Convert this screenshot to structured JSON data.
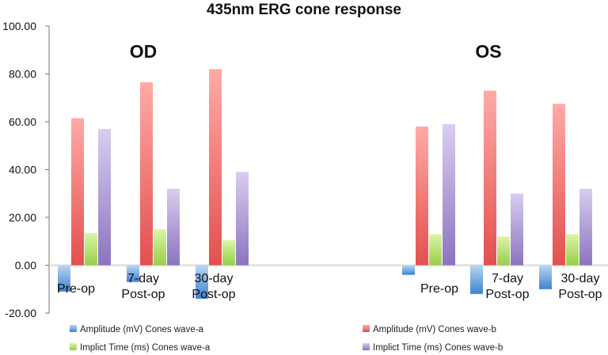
{
  "chart_data": {
    "type": "bar",
    "title": "435nm ERG cone response",
    "ylim": [
      -20,
      100
    ],
    "yticks": [
      "100.00",
      "80.00",
      "60.00",
      "40.00",
      "20.00",
      "0.00",
      "-20.00"
    ],
    "groups": [
      {
        "label": "OD",
        "categories": [
          "Pre-op",
          "7-day Post-op",
          "30-day Post-op"
        ]
      },
      {
        "label": "OS",
        "categories": [
          "Pre-op",
          "7-day Post-op",
          "30-day Post-op"
        ]
      }
    ],
    "category_text": [
      [
        "Pre-op"
      ],
      [
        "7-day",
        "Post-op"
      ],
      [
        "30-day",
        "Post-op"
      ],
      [
        "Pre-op"
      ],
      [
        "7-day",
        "Post-op"
      ],
      [
        "30-day",
        "Post-op"
      ]
    ],
    "series": [
      {
        "name": "Amplitude (mV) Cones wave-a",
        "color": "#4a8fd6",
        "values": [
          -11,
          -7,
          -14,
          -4,
          -12,
          -10
        ]
      },
      {
        "name": "Amplitude (mV) Cones wave-b",
        "color": "#e86563",
        "values": [
          61.5,
          76.5,
          82,
          58,
          73,
          67.5
        ]
      },
      {
        "name": "Implict Time (ms) Cones wave-a",
        "color": "#a6d95a",
        "values": [
          13.5,
          15,
          10.5,
          13,
          12,
          13
        ]
      },
      {
        "name": "Implict Time (ms) Cones wave-b",
        "color": "#9a85c8",
        "values": [
          57,
          32,
          39,
          59,
          30,
          32
        ]
      }
    ]
  }
}
